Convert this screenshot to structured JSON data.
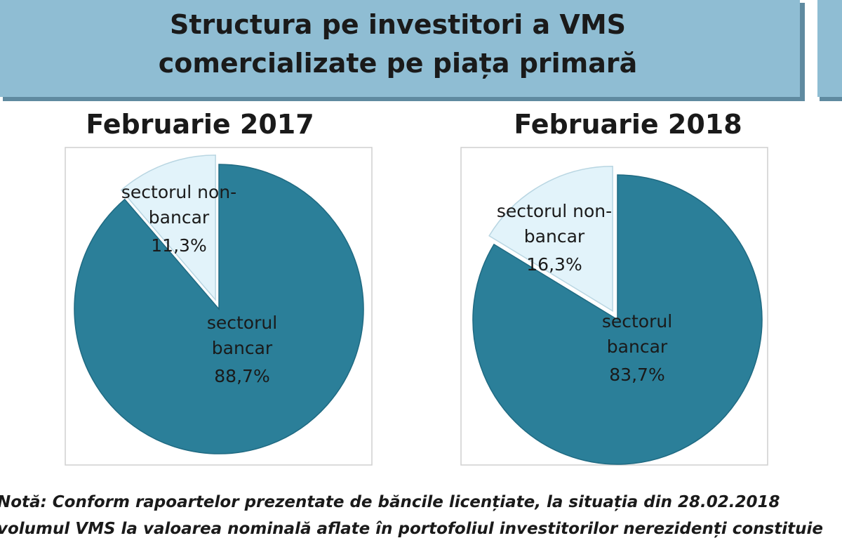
{
  "header": {
    "title_lines": [
      "Structura pe investitori a VMS",
      "comercializate pe piața primară"
    ]
  },
  "chart_data": [
    {
      "type": "pie",
      "title": "Februarie 2017",
      "categories": [
        "sectorul bancar",
        "sectorul non-bancar"
      ],
      "values": [
        88.7,
        11.3
      ],
      "value_labels": [
        "88,7%",
        "11,3%"
      ],
      "colors": [
        "#2b7f99",
        "#e2f3fa"
      ]
    },
    {
      "type": "pie",
      "title": "Februarie 2018",
      "categories": [
        "sectorul bancar",
        "sectorul non-bancar"
      ],
      "values": [
        83.7,
        16.3
      ],
      "value_labels": [
        "83,7%",
        "16,3%"
      ],
      "colors": [
        "#2b7f99",
        "#e2f3fa"
      ]
    }
  ],
  "note": {
    "lines": [
      "Notă: Conform rapoartelor prezentate de băncile licențiate, la situația din 28.02.2018",
      "volumul VMS la valoarea nominală aflate în portofoliul investitorilor nerezidenți constituie"
    ]
  }
}
